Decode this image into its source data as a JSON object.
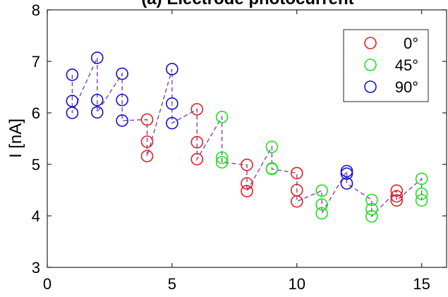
{
  "chart_data": {
    "type": "scatter",
    "title": "(a) Electrode photocurrent",
    "xlabel": "",
    "ylabel": "I [nA]",
    "xlim": [
      0,
      16
    ],
    "ylim": [
      3,
      8
    ],
    "xticks": [
      0,
      5,
      10,
      15
    ],
    "yticks": [
      3,
      4,
      5,
      6,
      7,
      8
    ],
    "grid": false,
    "legend": "top-right",
    "connector_color": "#8040b0",
    "series": [
      {
        "name": "0°",
        "color": "#e02020",
        "points": [
          [
            4,
            5.87
          ],
          [
            4,
            5.44
          ],
          [
            4,
            5.16
          ],
          [
            6,
            6.07
          ],
          [
            6,
            5.43
          ],
          [
            6,
            5.1
          ],
          [
            8,
            4.99
          ],
          [
            8,
            4.63
          ],
          [
            8,
            4.48
          ],
          [
            10,
            4.83
          ],
          [
            10,
            4.5
          ],
          [
            10,
            4.28
          ],
          [
            14,
            4.49
          ],
          [
            14,
            4.38
          ],
          [
            14,
            4.3
          ]
        ]
      },
      {
        "name": "45°",
        "color": "#20e020",
        "points": [
          [
            7,
            5.92
          ],
          [
            7,
            5.13
          ],
          [
            7,
            5.04
          ],
          [
            9,
            5.34
          ],
          [
            9,
            4.92
          ],
          [
            9,
            4.91
          ],
          [
            11,
            4.49
          ],
          [
            11,
            4.22
          ],
          [
            11,
            4.05
          ],
          [
            13,
            4.31
          ],
          [
            13,
            4.13
          ],
          [
            13,
            3.99
          ],
          [
            15,
            4.72
          ],
          [
            15,
            4.43
          ],
          [
            15,
            4.3
          ]
        ]
      },
      {
        "name": "90°",
        "color": "#1010d0",
        "points": [
          [
            1,
            6.74
          ],
          [
            1,
            6.23
          ],
          [
            1,
            6.0
          ],
          [
            2,
            7.07
          ],
          [
            2,
            6.25
          ],
          [
            2,
            6.01
          ],
          [
            3,
            6.76
          ],
          [
            3,
            6.25
          ],
          [
            3,
            5.85
          ],
          [
            5,
            6.85
          ],
          [
            5,
            6.18
          ],
          [
            5,
            5.8
          ],
          [
            12,
            4.87
          ],
          [
            12,
            4.82
          ],
          [
            12,
            4.63
          ]
        ]
      }
    ]
  }
}
